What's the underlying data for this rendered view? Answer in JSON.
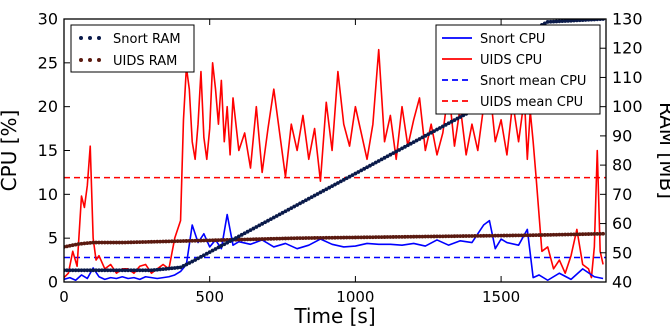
{
  "chart_data": {
    "type": "line",
    "xlabel": "Time [s]",
    "ylabel_left": "CPU [%]",
    "ylabel_right": "RAM [MB]",
    "xlim": [
      0,
      1860
    ],
    "ylim_left": [
      0,
      30
    ],
    "ylim_right": [
      40,
      130
    ],
    "xticks": [
      "0",
      "500",
      "1000",
      "1500"
    ],
    "yticks_left": [
      "0",
      "5",
      "10",
      "15",
      "20",
      "25",
      "30"
    ],
    "yticks_right": [
      "40",
      "50",
      "60",
      "70",
      "80",
      "90",
      "100",
      "110",
      "120",
      "130"
    ],
    "grid": false,
    "legend_left": {
      "position": "top-left",
      "entries": [
        "Snort RAM",
        "UIDS RAM"
      ]
    },
    "legend_right": {
      "position": "top-right",
      "entries": [
        "Snort CPU",
        "UIDS CPU",
        "Snort mean CPU",
        "UIDS mean CPU"
      ]
    },
    "colors": {
      "snort_ram": "#0a1a4a",
      "uids_ram": "#5a1a10",
      "snort_cpu": "#0000ff",
      "uids_cpu": "#ff0000",
      "snort_mean": "#0000ff",
      "uids_mean": "#ff0000"
    },
    "series": [
      {
        "name": "Snort CPU",
        "axis": "left",
        "style": "line",
        "x": [
          0,
          20,
          40,
          60,
          80,
          100,
          120,
          140,
          160,
          180,
          200,
          220,
          240,
          260,
          280,
          300,
          320,
          340,
          360,
          380,
          400,
          420,
          440,
          460,
          480,
          500,
          520,
          540,
          560,
          580,
          600,
          640,
          680,
          720,
          760,
          800,
          840,
          880,
          920,
          960,
          1000,
          1040,
          1080,
          1120,
          1160,
          1200,
          1240,
          1280,
          1320,
          1360,
          1400,
          1440,
          1460,
          1480,
          1500,
          1520,
          1560,
          1590,
          1610,
          1630,
          1660,
          1700,
          1740,
          1780,
          1820,
          1850
        ],
        "y": [
          0.3,
          0.5,
          0.2,
          0.8,
          0.4,
          1.6,
          0.6,
          0.3,
          0.5,
          0.4,
          0.6,
          0.4,
          0.5,
          0.3,
          0.6,
          0.5,
          0.4,
          0.5,
          0.6,
          0.8,
          1.2,
          2.0,
          6.5,
          4.5,
          5.5,
          4.0,
          4.8,
          3.8,
          7.7,
          4.2,
          4.6,
          4.3,
          4.8,
          4.0,
          4.4,
          3.8,
          4.2,
          4.9,
          4.3,
          4.0,
          4.1,
          4.4,
          4.3,
          4.3,
          4.2,
          4.4,
          4.1,
          4.8,
          4.2,
          4.7,
          4.5,
          6.5,
          7.0,
          3.8,
          4.9,
          4.5,
          4.2,
          6.0,
          0.5,
          0.8,
          0.2,
          1.0,
          0.3,
          1.5,
          0.6,
          0.4
        ]
      },
      {
        "name": "UIDS CPU",
        "axis": "left",
        "style": "line",
        "x": [
          0,
          15,
          30,
          45,
          60,
          70,
          80,
          90,
          100,
          110,
          120,
          140,
          160,
          180,
          200,
          220,
          240,
          260,
          280,
          300,
          320,
          340,
          360,
          380,
          400,
          410,
          420,
          430,
          440,
          450,
          460,
          470,
          480,
          490,
          500,
          510,
          520,
          530,
          540,
          550,
          560,
          570,
          580,
          590,
          600,
          620,
          640,
          660,
          680,
          700,
          720,
          740,
          760,
          780,
          800,
          820,
          840,
          860,
          880,
          900,
          920,
          940,
          960,
          980,
          1000,
          1020,
          1040,
          1060,
          1080,
          1100,
          1120,
          1140,
          1160,
          1180,
          1200,
          1220,
          1240,
          1260,
          1280,
          1300,
          1320,
          1340,
          1360,
          1380,
          1400,
          1420,
          1440,
          1460,
          1480,
          1500,
          1520,
          1540,
          1560,
          1580,
          1590,
          1600,
          1610,
          1620,
          1640,
          1660,
          1680,
          1700,
          1720,
          1740,
          1760,
          1780,
          1800,
          1810,
          1820,
          1830,
          1840,
          1850
        ],
        "y": [
          0.5,
          1.0,
          3.5,
          1.8,
          9.8,
          8.5,
          11.0,
          15.5,
          5.0,
          2.5,
          3.0,
          1.5,
          2.0,
          1.0,
          1.5,
          1.5,
          1.0,
          1.8,
          2.0,
          1.0,
          1.5,
          2.0,
          1.5,
          5.0,
          7.0,
          18.5,
          24.5,
          22.0,
          16.0,
          14.0,
          18.0,
          24.0,
          16.5,
          14.0,
          17.5,
          25.0,
          22.0,
          18.0,
          23.0,
          16.0,
          20.0,
          14.5,
          21.0,
          18.0,
          15.0,
          17.0,
          13.0,
          20.0,
          12.5,
          17.5,
          22.0,
          17.0,
          12.0,
          18.0,
          15.0,
          19.0,
          14.0,
          17.5,
          11.5,
          20.5,
          15.0,
          24.0,
          18.0,
          15.5,
          20.0,
          17.0,
          14.0,
          18.0,
          26.5,
          16.0,
          19.0,
          14.0,
          20.0,
          15.5,
          18.5,
          21.0,
          15.0,
          18.0,
          14.5,
          17.0,
          22.0,
          15.5,
          20.0,
          14.5,
          18.0,
          15.0,
          20.0,
          22.5,
          16.0,
          18.5,
          14.5,
          20.5,
          16.0,
          21.0,
          14.0,
          19.5,
          16.0,
          12.0,
          3.5,
          4.0,
          1.5,
          2.5,
          1.0,
          3.0,
          6.0,
          2.0,
          1.5,
          0.5,
          4.0,
          15.0,
          3.5,
          2.0
        ]
      },
      {
        "name": "Snort RAM",
        "axis": "right",
        "style": "dotted",
        "x": [
          0,
          100,
          200,
          300,
          400,
          420,
          440,
          1500,
          1580,
          1640,
          1660,
          1850
        ],
        "y": [
          44,
          44,
          44,
          44,
          45,
          46,
          47,
          104,
          122,
          128,
          129,
          130
        ]
      },
      {
        "name": "UIDS RAM",
        "axis": "right",
        "style": "dotted",
        "x": [
          0,
          50,
          100,
          200,
          400,
          800,
          1200,
          1600,
          1850
        ],
        "y": [
          52,
          53,
          53.5,
          53.5,
          54,
          55,
          55.5,
          56,
          56.5
        ]
      },
      {
        "name": "Snort mean CPU",
        "axis": "left",
        "style": "dashed",
        "x": [
          0,
          1860
        ],
        "y": [
          2.8,
          2.8
        ]
      },
      {
        "name": "UIDS mean CPU",
        "axis": "left",
        "style": "dashed",
        "x": [
          0,
          1860
        ],
        "y": [
          11.9,
          11.9
        ]
      }
    ]
  }
}
